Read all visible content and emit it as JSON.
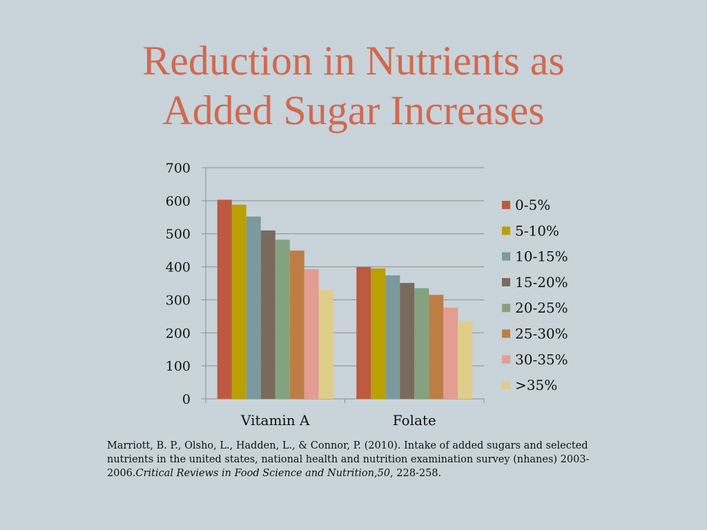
{
  "slide": {
    "title_line1": "Reduction in Nutrients as",
    "title_line2": "Added Sugar Increases"
  },
  "chart_data": {
    "type": "bar",
    "categories": [
      "Vitamin A",
      "Folate"
    ],
    "series": [
      {
        "name": "0-5%",
        "color": "#bd5a3f",
        "values": [
          603,
          399
        ]
      },
      {
        "name": "5-10%",
        "color": "#baa002",
        "values": [
          588,
          395
        ]
      },
      {
        "name": "10-15%",
        "color": "#7c9a9d",
        "values": [
          552,
          374
        ]
      },
      {
        "name": "15-20%",
        "color": "#7a6a5d",
        "values": [
          510,
          351
        ]
      },
      {
        "name": "20-25%",
        "color": "#84a27f",
        "values": [
          482,
          335
        ]
      },
      {
        "name": "25-30%",
        "color": "#bd7e45",
        "values": [
          449,
          315
        ]
      },
      {
        "name": "30-35%",
        "color": "#e39e91",
        "values": [
          393,
          276
        ]
      },
      {
        "name": ">35%",
        "color": "#dfcd8a",
        "values": [
          330,
          235
        ]
      }
    ],
    "ylim": [
      0,
      700
    ],
    "yticks": [
      0,
      100,
      200,
      300,
      400,
      500,
      600,
      700
    ],
    "grid": true,
    "legend": "right"
  },
  "citation": {
    "authors": "Marriott, B. P., Olsho, L., Hadden, L., & Connor, P. (2010). Intake of added sugars and selected nutrients in the united states, national health and nutrition examination survey (nhanes) 2003-2006.",
    "journal": "Critical Reviews in Food Science and Nutrition",
    "sep1": ",",
    "volume": "50",
    "pages": ", 228-258."
  }
}
